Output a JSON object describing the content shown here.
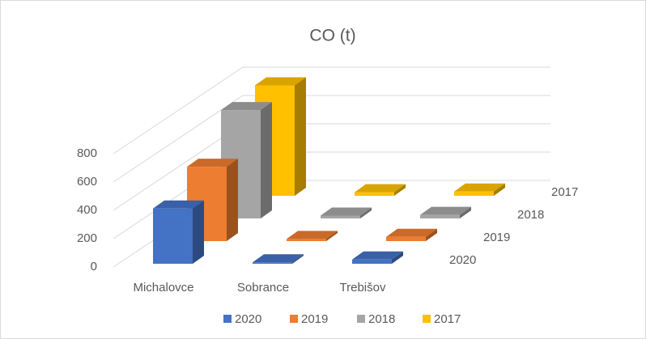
{
  "chart_data": {
    "type": "bar3d",
    "title": "CO (t)",
    "categories": [
      "Michalovce",
      "Sobrance",
      "Trebišov"
    ],
    "series": [
      {
        "name": "2020",
        "color": "#4472c4",
        "values": [
          390,
          10,
          30
        ]
      },
      {
        "name": "2019",
        "color": "#ed7d31",
        "values": [
          525,
          15,
          30
        ]
      },
      {
        "name": "2018",
        "color": "#a5a5a5",
        "values": [
          765,
          20,
          25
        ]
      },
      {
        "name": "2017",
        "color": "#ffc000",
        "values": [
          780,
          25,
          30
        ]
      }
    ],
    "ylim": [
      0,
      800
    ],
    "yticks": [
      0,
      200,
      400,
      600,
      800
    ],
    "grid": true,
    "legend": "bottom"
  }
}
